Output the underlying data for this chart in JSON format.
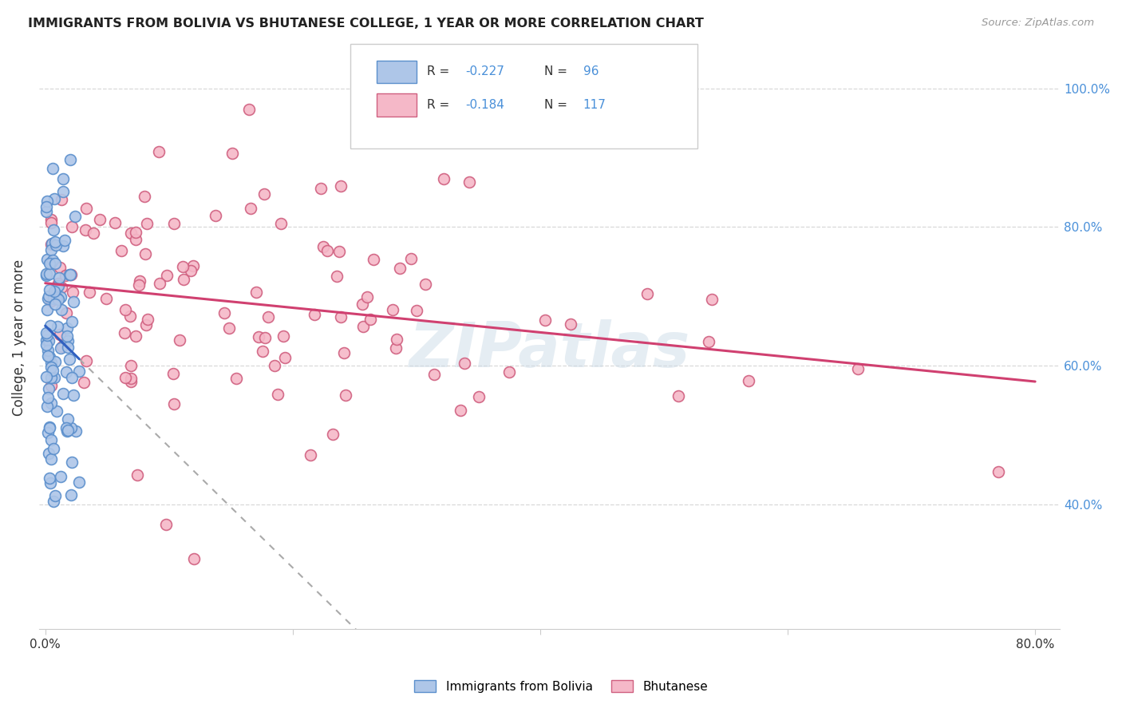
{
  "title": "IMMIGRANTS FROM BOLIVIA VS BHUTANESE COLLEGE, 1 YEAR OR MORE CORRELATION CHART",
  "source": "Source: ZipAtlas.com",
  "ylabel": "College, 1 year or more",
  "legend_label1": "Immigrants from Bolivia",
  "legend_label2": "Bhutanese",
  "r1": "-0.227",
  "n1": "96",
  "r2": "-0.184",
  "n2": "117",
  "color_bolivia": "#aec6e8",
  "color_bhutanese": "#f5b8c8",
  "edge_bolivia": "#5b8fcc",
  "edge_bhutanese": "#d06080",
  "line_color_bolivia": "#3060c0",
  "line_color_bhutanese": "#d04070",
  "watermark": "ZIPatlas",
  "bg_color": "#ffffff",
  "grid_color": "#d8d8d8",
  "right_tick_color": "#4a90d9",
  "ytick_vals": [
    0.4,
    0.6,
    0.8,
    1.0
  ],
  "ytick_labels": [
    "40.0%",
    "60.0%",
    "80.0%",
    "100.0%"
  ],
  "xlim": [
    -0.005,
    0.82
  ],
  "ylim": [
    0.22,
    1.06
  ]
}
